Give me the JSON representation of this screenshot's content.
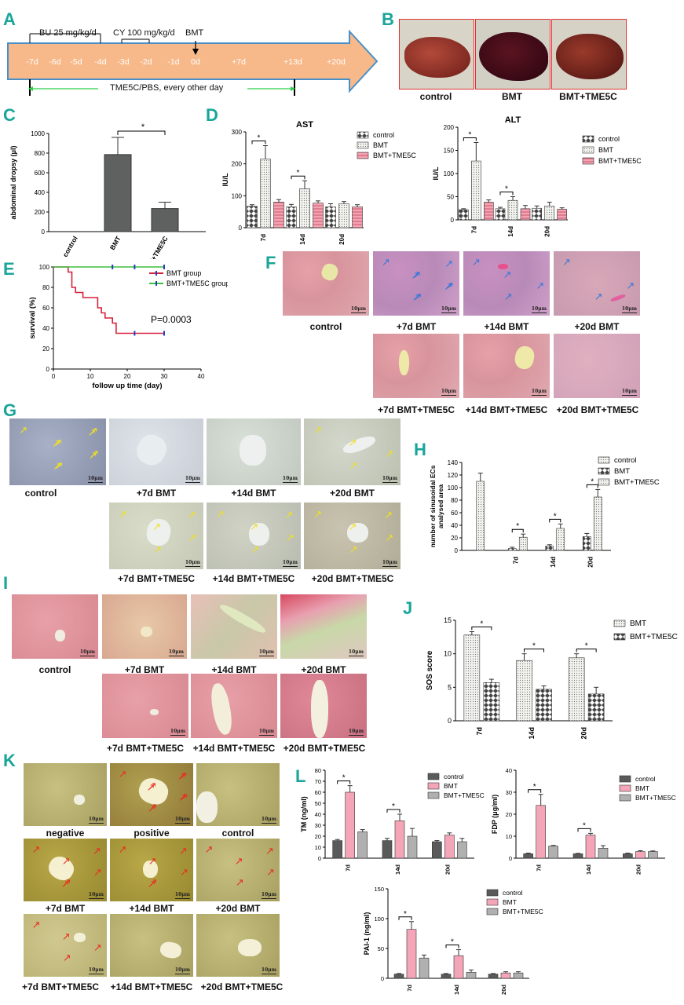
{
  "figure": {
    "panel_letters": [
      "A",
      "B",
      "C",
      "D",
      "E",
      "F",
      "G",
      "H",
      "I",
      "J",
      "K",
      "L"
    ],
    "A": {
      "bu_label": "BU 25 mg/kg/d",
      "cy_label": "CY 100 mg/kg/d",
      "bmt_label": "BMT",
      "days": [
        "-7d",
        "-6d",
        "-5d",
        "-4d",
        "-3d",
        "-2d",
        "-1d",
        "0d",
        "+7d",
        "+13d",
        "+20d"
      ],
      "treatment_label": "TME5C/PBS, every other day"
    },
    "B": {
      "captions": [
        "control",
        "BMT",
        "BMT+TME5C"
      ]
    },
    "F": {
      "captions": [
        "control",
        "+7d BMT",
        "+14d BMT",
        "+20d BMT",
        "+7d BMT+TME5C",
        "+14d BMT+TME5C",
        "+20d BMT+TME5C"
      ],
      "scale": "10μm"
    },
    "G": {
      "captions": [
        "control",
        "+7d BMT",
        "+14d BMT",
        "+20d BMT",
        "+7d BMT+TME5C",
        "+14d  BMT+TME5C",
        "+20d BMT+TME5C"
      ],
      "scale": "10μm"
    },
    "I": {
      "captions": [
        "control",
        "+7d BMT",
        "+14d BMT",
        "+20d BMT",
        "+7d BMT+TME5C",
        "+14d BMT+TME5C",
        "+20d BMT+TME5C"
      ],
      "scale": "10μm"
    },
    "K": {
      "captions": [
        "negative",
        "positive",
        "control",
        "+7d BMT",
        "+14d BMT",
        "+20d BMT",
        "+7d BMT+TME5C",
        "+14d BMT+TME5C",
        "+20d BMT+TME5C"
      ],
      "scale": "10μm"
    },
    "colors": {
      "accent_teal": "#1aa59a",
      "timeline_fill": "#f7b98a",
      "bmt_red": "#e8788a",
      "tme5c_pink": "#f0a0a8",
      "pink_l": "#f4a6b8",
      "grey_dark": "#5f6060",
      "grey_mid": "#aaaaaa"
    }
  },
  "chart_data": [
    {
      "id": "C",
      "type": "bar",
      "ylabel": "abdominal dropsy (μl)",
      "categories": [
        "control",
        "BMT",
        "BMT+TME5C"
      ],
      "values": [
        0,
        785,
        235
      ],
      "errors": [
        0,
        175,
        65
      ],
      "ylim": [
        0,
        1000
      ],
      "yticks": [
        "0",
        "200",
        "400",
        "600",
        "800",
        "1000"
      ],
      "significance": [
        {
          "between": [
            "BMT",
            "BMT+TME5C"
          ],
          "label": "*"
        }
      ]
    },
    {
      "id": "D-AST",
      "type": "bar",
      "title": "AST",
      "ylabel": "IU/L",
      "categories": [
        "7d",
        "14d",
        "20d"
      ],
      "series": [
        {
          "name": "control",
          "values": [
            67,
            65,
            65
          ],
          "errors": [
            5,
            8,
            10
          ]
        },
        {
          "name": "BMT",
          "values": [
            215,
            122,
            75
          ],
          "errors": [
            42,
            25,
            7
          ]
        },
        {
          "name": "BMT+TME5C",
          "values": [
            80,
            77,
            65
          ],
          "errors": [
            8,
            7,
            7
          ]
        }
      ],
      "ylim": [
        0,
        300
      ],
      "yticks": [
        "0",
        "100",
        "200",
        "300"
      ],
      "significance": [
        {
          "category": "7d",
          "label": "*"
        },
        {
          "category": "14d",
          "label": "*"
        }
      ]
    },
    {
      "id": "D-ALT",
      "type": "bar",
      "title": "ALT",
      "ylabel": "IU/L",
      "categories": [
        "7d",
        "14d",
        "20d"
      ],
      "series": [
        {
          "name": "control",
          "values": [
            22,
            24,
            25
          ],
          "errors": [
            2,
            3,
            5
          ]
        },
        {
          "name": "BMT",
          "values": [
            127,
            42,
            30
          ],
          "errors": [
            40,
            8,
            8
          ]
        },
        {
          "name": "BMT+TME5C",
          "values": [
            38,
            24,
            23
          ],
          "errors": [
            5,
            7,
            3
          ]
        }
      ],
      "ylim": [
        0,
        200
      ],
      "yticks": [
        "0",
        "50",
        "100",
        "150",
        "200"
      ],
      "significance": [
        {
          "category": "7d",
          "label": "*"
        },
        {
          "category": "14d",
          "label": "*"
        }
      ]
    },
    {
      "id": "E",
      "type": "line",
      "xlabel": "follow up time (day)",
      "ylabel": "survival (%)",
      "xlim": [
        0,
        40
      ],
      "ylim": [
        0,
        100
      ],
      "xticks": [
        "0",
        "10",
        "20",
        "30",
        "40"
      ],
      "yticks": [
        "0",
        "20",
        "40",
        "60",
        "80",
        "100"
      ],
      "series": [
        {
          "name": "BMT group",
          "x": [
            0,
            4,
            5,
            6,
            8,
            12,
            13,
            14,
            16,
            17,
            30
          ],
          "y": [
            100,
            95,
            80,
            75,
            70,
            60,
            55,
            50,
            45,
            35,
            35
          ]
        },
        {
          "name": "BMT+TME5C group",
          "x": [
            0,
            30
          ],
          "y": [
            100,
            100
          ]
        }
      ],
      "annotation": "P=0.0003"
    },
    {
      "id": "H",
      "type": "bar",
      "ylabel": "number of sinusoidal ECs\nanalysed area",
      "categories": [
        "",
        "7d",
        "14d",
        "20d"
      ],
      "series": [
        {
          "name": "control",
          "values": [
            110,
            null,
            null,
            null
          ],
          "errors": [
            13,
            null,
            null,
            null
          ]
        },
        {
          "name": "BMT",
          "values": [
            null,
            3,
            7,
            22
          ],
          "errors": [
            null,
            2,
            2,
            5
          ]
        },
        {
          "name": "BMT+TME5C",
          "values": [
            null,
            21,
            35,
            85
          ],
          "errors": [
            null,
            5,
            7,
            12
          ]
        }
      ],
      "ylim": [
        0,
        140
      ],
      "yticks": [
        "0",
        "20",
        "40",
        "60",
        "80",
        "100",
        "120",
        "140"
      ],
      "significance": [
        {
          "category": "7d",
          "label": "*"
        },
        {
          "category": "14d",
          "label": "*"
        },
        {
          "category": "20d",
          "label": "*"
        }
      ]
    },
    {
      "id": "J",
      "type": "bar",
      "ylabel": "SOS score",
      "categories": [
        "7d",
        "14d",
        "20d"
      ],
      "series": [
        {
          "name": "BMT",
          "values": [
            12.8,
            9.0,
            9.4
          ],
          "errors": [
            0.5,
            1.0,
            0.6
          ]
        },
        {
          "name": "BMT+TME5C",
          "values": [
            5.7,
            4.7,
            4.0
          ],
          "errors": [
            0.5,
            0.5,
            1.0
          ]
        }
      ],
      "ylim": [
        0,
        15
      ],
      "yticks": [
        "0",
        "5",
        "10",
        "15"
      ],
      "significance": [
        {
          "category": "7d",
          "label": "*"
        },
        {
          "category": "14d",
          "label": "*"
        },
        {
          "category": "20d",
          "label": "*"
        }
      ]
    },
    {
      "id": "L-TM",
      "type": "bar",
      "ylabel": "TM (ng/ml)",
      "categories": [
        "7d",
        "14d",
        "20d"
      ],
      "series": [
        {
          "name": "control",
          "values": [
            16,
            16,
            15
          ],
          "errors": [
            1,
            2,
            1
          ]
        },
        {
          "name": "BMT",
          "values": [
            60,
            34,
            21
          ],
          "errors": [
            6,
            6,
            2
          ]
        },
        {
          "name": "BMT+TME5C",
          "values": [
            24,
            20,
            15
          ],
          "errors": [
            2,
            7,
            3
          ]
        }
      ],
      "ylim": [
        0,
        80
      ],
      "yticks": [
        "0",
        "10",
        "20",
        "30",
        "40",
        "50",
        "60",
        "70",
        "80"
      ],
      "significance": [
        {
          "category": "7d",
          "label": "*"
        },
        {
          "category": "14d",
          "label": "*"
        }
      ]
    },
    {
      "id": "L-FDP",
      "type": "bar",
      "ylabel": "FDP (μg/ml)",
      "categories": [
        "7d",
        "14d",
        "20d"
      ],
      "series": [
        {
          "name": "control",
          "values": [
            2,
            2,
            2
          ],
          "errors": [
            0.3,
            0.2,
            0.3
          ]
        },
        {
          "name": "BMT",
          "values": [
            24,
            10.5,
            3
          ],
          "errors": [
            5,
            0.8,
            0.4
          ]
        },
        {
          "name": "BMT+TME5C",
          "values": [
            5.5,
            4.5,
            3
          ],
          "errors": [
            0.3,
            1.2,
            0.3
          ]
        }
      ],
      "ylim": [
        0,
        40
      ],
      "yticks": [
        "0",
        "10",
        "20",
        "30",
        "40"
      ],
      "significance": [
        {
          "category": "7d",
          "label": "*"
        },
        {
          "category": "14d",
          "label": "*"
        }
      ]
    },
    {
      "id": "L-PAI",
      "type": "bar",
      "ylabel": "PAI-1 (ng/ml)",
      "categories": [
        "7d",
        "14d",
        "20d"
      ],
      "series": [
        {
          "name": "control",
          "values": [
            7,
            7,
            7
          ],
          "errors": [
            1,
            1,
            1
          ]
        },
        {
          "name": "BMT",
          "values": [
            82,
            38,
            9
          ],
          "errors": [
            13,
            10,
            2
          ]
        },
        {
          "name": "BMT+TME5C",
          "values": [
            34,
            10,
            9
          ],
          "errors": [
            5,
            4,
            2
          ]
        }
      ],
      "ylim": [
        0,
        150
      ],
      "yticks": [
        "0",
        "50",
        "100",
        "150"
      ],
      "significance": [
        {
          "category": "7d",
          "label": "*"
        },
        {
          "category": "14d",
          "label": "*"
        }
      ]
    }
  ]
}
